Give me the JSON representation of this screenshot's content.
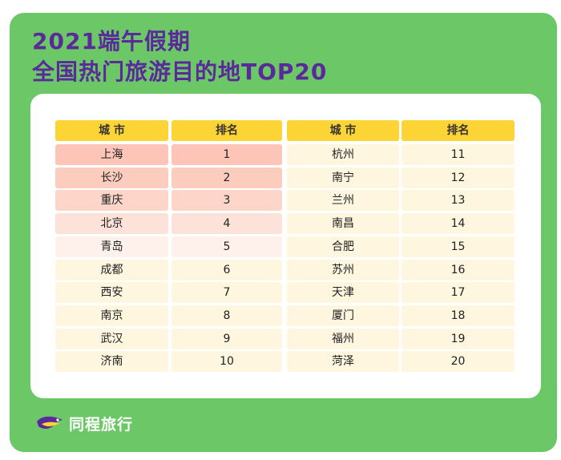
{
  "title": {
    "line1": "2021端午假期",
    "line2": "全国热门旅游目的地TOP20"
  },
  "table": {
    "headers": [
      "城 市",
      "排名",
      "城 市",
      "排名"
    ],
    "left": [
      {
        "city": "上海",
        "rank": "1"
      },
      {
        "city": "长沙",
        "rank": "2"
      },
      {
        "city": "重庆",
        "rank": "3"
      },
      {
        "city": "北京",
        "rank": "4"
      },
      {
        "city": "青岛",
        "rank": "5"
      },
      {
        "city": "成都",
        "rank": "6"
      },
      {
        "city": "西安",
        "rank": "7"
      },
      {
        "city": "南京",
        "rank": "8"
      },
      {
        "city": "武汉",
        "rank": "9"
      },
      {
        "city": "济南",
        "rank": "10"
      }
    ],
    "right": [
      {
        "city": "杭州",
        "rank": "11"
      },
      {
        "city": "南宁",
        "rank": "12"
      },
      {
        "city": "兰州",
        "rank": "13"
      },
      {
        "city": "南昌",
        "rank": "14"
      },
      {
        "city": "合肥",
        "rank": "15"
      },
      {
        "city": "苏州",
        "rank": "16"
      },
      {
        "city": "天津",
        "rank": "17"
      },
      {
        "city": "厦门",
        "rank": "18"
      },
      {
        "city": "福州",
        "rank": "19"
      },
      {
        "city": "菏泽",
        "rank": "20"
      }
    ]
  },
  "colors": {
    "background": "#6cc767",
    "title": "#5a2a9b",
    "header": "#fcd436",
    "left_rows": [
      "#fcc5b8",
      "#fccdbf",
      "#fdd6c9",
      "#fde2d9",
      "#fef0ea",
      "#fff6e0",
      "#fff6e0",
      "#fff6e0",
      "#fff6e0",
      "#fff6e0"
    ],
    "right_rows": "#fff6e0"
  },
  "brand": {
    "name": "同程旅行",
    "icon": "tongcheng-bird-logo-icon"
  }
}
